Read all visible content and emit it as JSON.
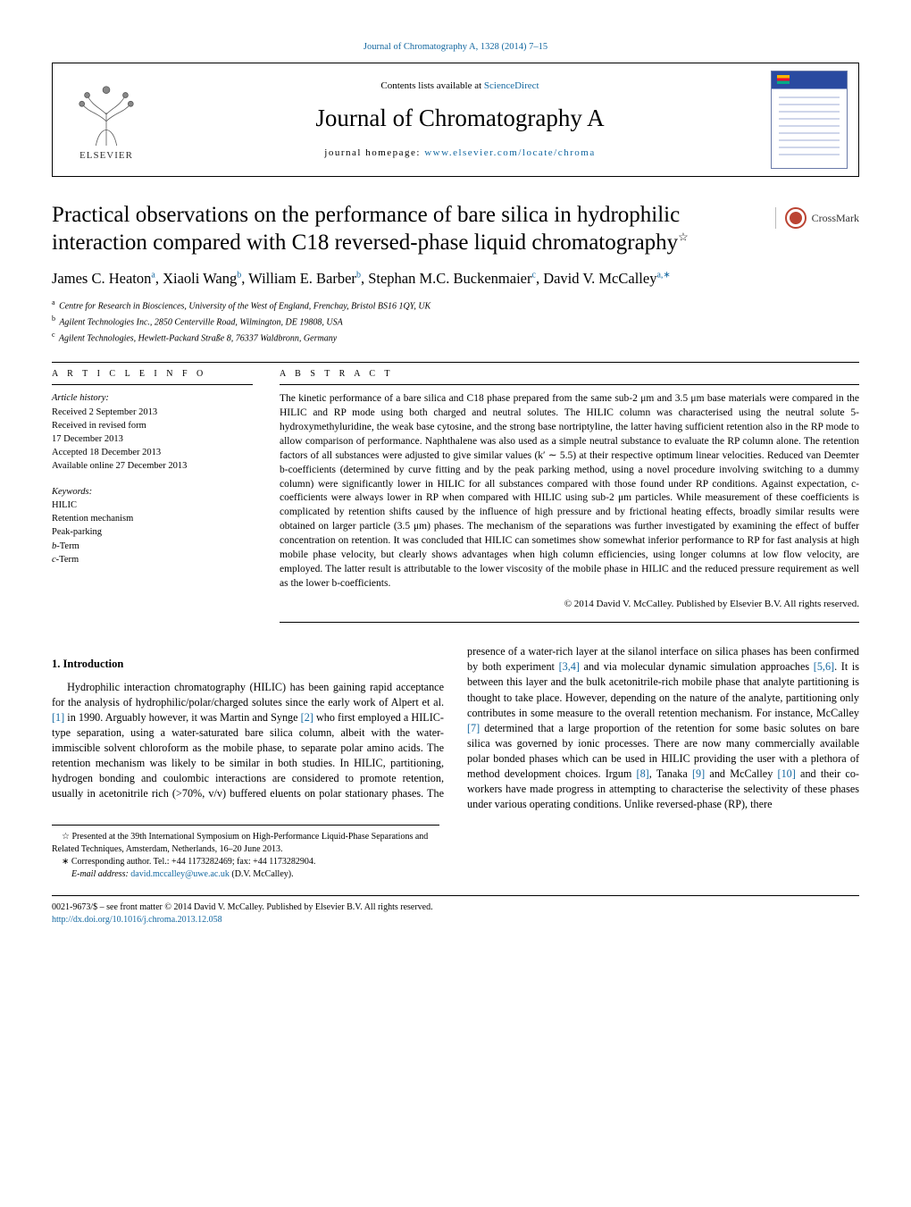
{
  "top_link": {
    "citation": "Journal of Chromatography A, 1328 (2014) 7–15"
  },
  "masthead": {
    "contents_prefix": "Contents lists available at ",
    "contents_link": "ScienceDirect",
    "journal": "Journal of Chromatography A",
    "home_prefix": "journal homepage: ",
    "home_link": "www.elsevier.com/locate/chroma",
    "publisher_label": "ELSEVIER"
  },
  "title": "Practical observations on the performance of bare silica in hydrophilic interaction compared with C18 reversed-phase liquid chromatography",
  "title_footnote_marker": "☆",
  "crossmark_label": "CrossMark",
  "authors_html": "James C. Heaton|a|, Xiaoli Wang|b|, William E. Barber|b|, Stephan M.C. Buckenmaier|c|, David V. McCalley|a,*|",
  "authors": [
    {
      "name": "James C. Heaton",
      "sup": "a"
    },
    {
      "name": "Xiaoli Wang",
      "sup": "b"
    },
    {
      "name": "William E. Barber",
      "sup": "b"
    },
    {
      "name": "Stephan M.C. Buckenmaier",
      "sup": "c"
    },
    {
      "name": "David V. McCalley",
      "sup": "a,",
      "corr": "∗"
    }
  ],
  "affiliations": [
    {
      "label": "a",
      "text": "Centre for Research in Biosciences, University of the West of England, Frenchay, Bristol BS16 1QY, UK"
    },
    {
      "label": "b",
      "text": "Agilent Technologies Inc., 2850 Centerville Road, Wilmington, DE 19808, USA"
    },
    {
      "label": "c",
      "text": "Agilent Technologies, Hewlett-Packard Straße 8, 76337 Waldbronn, Germany"
    }
  ],
  "article_info_heading": "A R T I C L E    I N F O",
  "abstract_heading": "A B S T R A C T",
  "history_label": "Article history:",
  "history": [
    "Received 2 September 2013",
    "Received in revised form",
    "17 December 2013",
    "Accepted 18 December 2013",
    "Available online 27 December 2013"
  ],
  "keywords_label": "Keywords:",
  "keywords": [
    "HILIC",
    "Retention mechanism",
    "Peak-parking",
    "b-Term",
    "c-Term"
  ],
  "abstract": "The kinetic performance of a bare silica and C18 phase prepared from the same sub-2 μm and 3.5 μm base materials were compared in the HILIC and RP mode using both charged and neutral solutes. The HILIC column was characterised using the neutral solute 5-hydroxymethyluridine, the weak base cytosine, and the strong base nortriptyline, the latter having sufficient retention also in the RP mode to allow comparison of performance. Naphthalene was also used as a simple neutral substance to evaluate the RP column alone. The retention factors of all substances were adjusted to give similar values (k′ ∼ 5.5) at their respective optimum linear velocities. Reduced van Deemter b-coefficients (determined by curve fitting and by the peak parking method, using a novel procedure involving switching to a dummy column) were significantly lower in HILIC for all substances compared with those found under RP conditions. Against expectation, c-coefficients were always lower in RP when compared with HILIC using sub-2 μm particles. While measurement of these coefficients is complicated by retention shifts caused by the influence of high pressure and by frictional heating effects, broadly similar results were obtained on larger particle (3.5 μm) phases. The mechanism of the separations was further investigated by examining the effect of buffer concentration on retention. It was concluded that HILIC can sometimes show somewhat inferior performance to RP for fast analysis at high mobile phase velocity, but clearly shows advantages when high column efficiencies, using longer columns at low flow velocity, are employed. The latter result is attributable to the lower viscosity of the mobile phase in HILIC and the reduced pressure requirement as well as the lower b-coefficients.",
  "copyright": "© 2014 David V. McCalley. Published by Elsevier B.V. All rights reserved.",
  "section_1_heading": "1.   Introduction",
  "body": {
    "p1": "Hydrophilic interaction chromatography (HILIC) has been gaining rapid acceptance for the analysis of hydrophilic/polar/charged solutes since the early work of Alpert et al. ",
    "p1_c1": "[1]",
    "p1b": " in 1990. Arguably however, it was Martin and Synge ",
    "p1_c2": "[2]",
    "p1c": " who first employed a HILIC-type separation, using a water-saturated bare silica column, albeit with the water-immiscible solvent chloroform as the mobile phase, to separate polar amino acids. The retention mechanism was likely to be similar in both studies. In HILIC, partitioning, hydrogen ",
    "p2a": "bonding and coulombic interactions are considered to promote retention, usually in acetonitrile rich (>70%, v/v) buffered eluents on polar stationary phases. The presence of a water-rich layer at the silanol interface on silica phases has been confirmed by both experiment ",
    "p2_c34": "[3,4]",
    "p2b": " and via molecular dynamic simulation approaches ",
    "p2_c56": "[5,6]",
    "p2c": ". It is between this layer and the bulk acetonitrile-rich mobile phase that analyte partitioning is thought to take place. However, depending on the nature of the analyte, partitioning only contributes in some measure to the overall retention mechanism. For instance, McCalley ",
    "p2_c7": "[7]",
    "p2d": " determined that a large proportion of the retention for some basic solutes on bare silica was governed by ionic processes. There are now many commercially available polar bonded phases which can be used in HILIC providing the user with a plethora of method development choices. Irgum ",
    "p2_c8": "[8]",
    "p2e": ", Tanaka ",
    "p2_c9": "[9]",
    "p2f": " and McCalley ",
    "p2_c10": "[10]",
    "p2g": " and their co-workers have made progress in attempting to characterise the selectivity of these phases under various operating conditions. Unlike reversed-phase (RP), there"
  },
  "footnotes": {
    "star": "☆",
    "star_text": "Presented at the 39th International Symposium on High-Performance Liquid-Phase Separations and Related Techniques, Amsterdam, Netherlands, 16–20 June 2013.",
    "corr": "∗",
    "corr_text": "Corresponding author. Tel.: +44 1173282469; fax: +44 1173282904.",
    "email_label": "E-mail address: ",
    "email": "david.mccalley@uwe.ac.uk",
    "email_suffix": " (D.V. McCalley)."
  },
  "bottom": {
    "line1": "0021-9673/$ – see front matter © 2014 David V. McCalley. Published by Elsevier B.V. All rights reserved.",
    "doi": "http://dx.doi.org/10.1016/j.chroma.2013.12.058"
  },
  "colors": {
    "link": "#1468a0",
    "rule": "#000000",
    "text": "#000000"
  }
}
